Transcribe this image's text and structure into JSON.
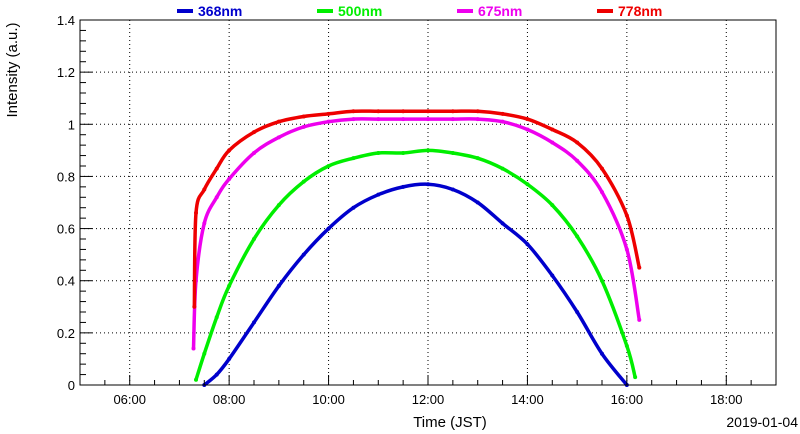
{
  "chart_data": {
    "type": "scatter",
    "title": "",
    "xlabel": "Time (JST)",
    "ylabel": "Intensity (a.u.)",
    "date_label": "2019-01-04",
    "xlim": [
      "05:00",
      "19:00"
    ],
    "ylim": [
      0,
      1.4
    ],
    "x_ticks": [
      "06:00",
      "08:00",
      "10:00",
      "12:00",
      "14:00",
      "16:00",
      "18:00"
    ],
    "y_ticks": [
      "0",
      "0.2",
      "0.4",
      "0.6",
      "0.8",
      "1",
      "1.2",
      "1.4"
    ],
    "grid": true,
    "legend_position": "top",
    "series": [
      {
        "name": "368nm",
        "color": "#0000cc",
        "x": [
          "07:30",
          "07:45",
          "08:00",
          "08:30",
          "09:00",
          "09:30",
          "10:00",
          "10:30",
          "11:00",
          "11:30",
          "12:00",
          "12:30",
          "13:00",
          "13:30",
          "14:00",
          "14:30",
          "15:00",
          "15:30",
          "16:00"
        ],
        "y": [
          0.0,
          0.04,
          0.1,
          0.24,
          0.38,
          0.5,
          0.6,
          0.68,
          0.73,
          0.76,
          0.77,
          0.75,
          0.7,
          0.62,
          0.54,
          0.42,
          0.28,
          0.12,
          0.0
        ]
      },
      {
        "name": "500nm",
        "color": "#00ee00",
        "x": [
          "07:20",
          "07:30",
          "07:45",
          "08:00",
          "08:30",
          "09:00",
          "09:30",
          "10:00",
          "10:30",
          "11:00",
          "11:30",
          "12:00",
          "12:30",
          "13:00",
          "13:30",
          "14:00",
          "14:30",
          "15:00",
          "15:30",
          "16:00",
          "16:10"
        ],
        "y": [
          0.02,
          0.12,
          0.26,
          0.38,
          0.56,
          0.69,
          0.78,
          0.84,
          0.87,
          0.89,
          0.89,
          0.9,
          0.89,
          0.87,
          0.83,
          0.77,
          0.69,
          0.57,
          0.4,
          0.15,
          0.03
        ]
      },
      {
        "name": "675nm",
        "color": "#ee00ee",
        "x": [
          "07:17",
          "07:20",
          "07:30",
          "07:45",
          "08:00",
          "08:30",
          "09:00",
          "09:30",
          "10:00",
          "10:30",
          "11:00",
          "11:30",
          "12:00",
          "12:30",
          "13:00",
          "13:30",
          "14:00",
          "14:30",
          "15:00",
          "15:30",
          "16:00",
          "16:15"
        ],
        "y": [
          0.14,
          0.4,
          0.62,
          0.72,
          0.79,
          0.89,
          0.95,
          0.99,
          1.01,
          1.02,
          1.02,
          1.02,
          1.02,
          1.02,
          1.02,
          1.01,
          0.98,
          0.93,
          0.86,
          0.74,
          0.52,
          0.25
        ]
      },
      {
        "name": "778nm",
        "color": "#ee0000",
        "x": [
          "07:18",
          "07:20",
          "07:30",
          "07:45",
          "08:00",
          "08:30",
          "09:00",
          "09:30",
          "10:00",
          "10:30",
          "11:00",
          "11:30",
          "12:00",
          "12:30",
          "13:00",
          "13:30",
          "14:00",
          "14:30",
          "15:00",
          "15:30",
          "16:00",
          "16:15"
        ],
        "y": [
          0.3,
          0.66,
          0.75,
          0.83,
          0.9,
          0.97,
          1.01,
          1.03,
          1.04,
          1.05,
          1.05,
          1.05,
          1.05,
          1.05,
          1.05,
          1.04,
          1.02,
          0.98,
          0.93,
          0.83,
          0.65,
          0.45
        ]
      }
    ]
  }
}
